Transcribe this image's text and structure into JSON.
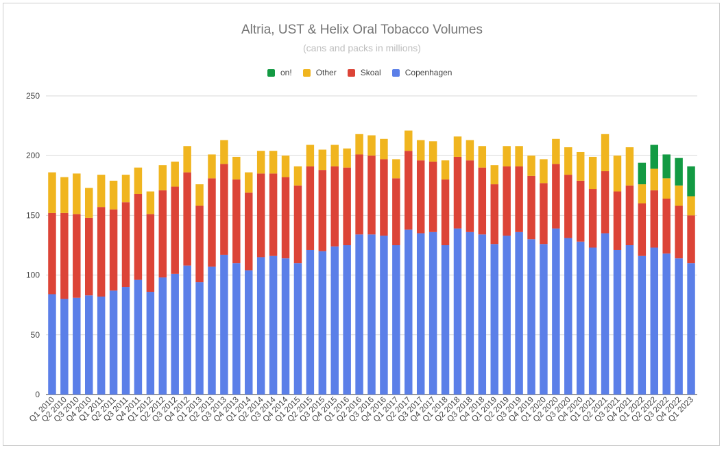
{
  "chart_data": {
    "type": "bar",
    "stacked": true,
    "title": "Altria, UST & Helix Oral Tobacco Volumes",
    "subtitle": "(cans and packs in millions)",
    "xlabel": "",
    "ylabel": "",
    "ylim": [
      0,
      250
    ],
    "yticks": [
      0,
      50,
      100,
      150,
      200,
      250
    ],
    "grid": true,
    "legend_position": "top",
    "legend_order": [
      "on!",
      "Other",
      "Skoal",
      "Copenhagen"
    ],
    "categories": [
      "Q1 2010",
      "Q2 2010",
      "Q3 2010",
      "Q4 2010",
      "Q1 2011",
      "Q2 2011",
      "Q3 2011",
      "Q4 2011",
      "Q1 2012",
      "Q2 2012",
      "Q3 2012",
      "Q4 2012",
      "Q1 2013",
      "Q2 2013",
      "Q3 2013",
      "Q4 2013",
      "Q1 2014",
      "Q2 2014",
      "Q3 2014",
      "Q4 2014",
      "Q1 2015",
      "Q2 2015",
      "Q3 2015",
      "Q4 2015",
      "Q1 2016",
      "Q2 2016",
      "Q3 2016",
      "Q4 2016",
      "Q1 2017",
      "Q2 2017",
      "Q3 2017",
      "Q4 2017",
      "Q1 2018",
      "Q2 2018",
      "Q3 2018",
      "Q4 2018",
      "Q1 2019",
      "Q2 2019",
      "Q3 2019",
      "Q4 2019",
      "Q1 2020",
      "Q2 2020",
      "Q3 2020",
      "Q4 2020",
      "Q1 2021",
      "Q2 2021",
      "Q3 2021",
      "Q4 2021",
      "Q1 2022",
      "Q2 2022",
      "Q3 2022",
      "Q4 2022",
      "Q1 2023"
    ],
    "series": [
      {
        "name": "Copenhagen",
        "color": "#5b7fe8",
        "values": [
          84,
          80,
          81,
          83,
          82,
          87,
          90,
          96,
          86,
          98,
          101,
          108,
          94,
          107,
          117,
          110,
          104,
          115,
          116,
          114,
          110,
          121,
          120,
          124,
          125,
          134,
          134,
          133,
          125,
          138,
          135,
          136,
          125,
          139,
          136,
          134,
          126,
          133,
          136,
          130,
          126,
          139,
          131,
          128,
          123,
          135,
          121,
          125,
          116,
          123,
          118,
          114,
          110
        ]
      },
      {
        "name": "Skoal",
        "color": "#dc4437",
        "values": [
          68,
          72,
          70,
          65,
          75,
          68,
          71,
          72,
          65,
          73,
          73,
          78,
          64,
          74,
          76,
          70,
          65,
          70,
          69,
          68,
          65,
          70,
          68,
          67,
          65,
          67,
          66,
          64,
          56,
          66,
          61,
          59,
          55,
          60,
          60,
          56,
          50,
          58,
          55,
          53,
          51,
          54,
          53,
          51,
          49,
          52,
          49,
          50,
          44,
          48,
          46,
          44,
          40
        ]
      },
      {
        "name": "Other",
        "color": "#f0b51f",
        "values": [
          34,
          30,
          34,
          25,
          27,
          24,
          23,
          22,
          19,
          21,
          21,
          22,
          18,
          20,
          20,
          19,
          17,
          19,
          19,
          18,
          16,
          18,
          17,
          18,
          16,
          17,
          17,
          17,
          16,
          17,
          17,
          17,
          16,
          17,
          17,
          18,
          16,
          17,
          17,
          17,
          20,
          21,
          23,
          24,
          27,
          31,
          30,
          32,
          16,
          18,
          17,
          17,
          16
        ]
      },
      {
        "name": "on!",
        "color": "#139a43",
        "values": [
          0,
          0,
          0,
          0,
          0,
          0,
          0,
          0,
          0,
          0,
          0,
          0,
          0,
          0,
          0,
          0,
          0,
          0,
          0,
          0,
          0,
          0,
          0,
          0,
          0,
          0,
          0,
          0,
          0,
          0,
          0,
          0,
          0,
          0,
          0,
          0,
          0,
          0,
          0,
          0,
          0,
          0,
          0,
          0,
          0,
          0,
          0,
          0,
          18,
          20,
          20,
          23,
          25
        ]
      }
    ]
  }
}
